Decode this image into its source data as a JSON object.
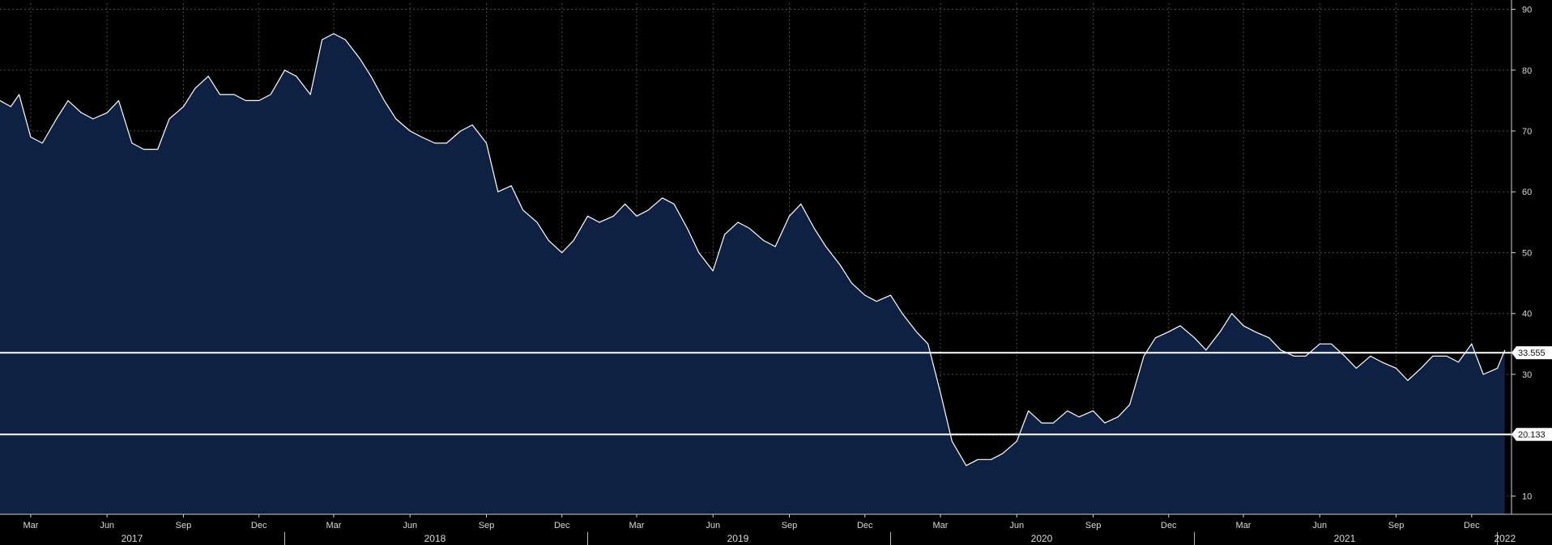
{
  "colors": {
    "background": "#000000",
    "area_fill": "#0e2142",
    "line": "#ffffff",
    "grid": "#4a4a4a",
    "level_line": "#ffffff",
    "level_label_bg": "#ffffff"
  },
  "chart_data": {
    "type": "area",
    "title": "",
    "xlabel": "",
    "ylabel": "",
    "grid": true,
    "y_axis_side": "right",
    "ylim": [
      7,
      91
    ],
    "y_ticks": [
      10,
      20,
      30,
      40,
      50,
      60,
      70,
      80,
      90
    ],
    "xlim": [
      "2017-01-23",
      "2022-01-18"
    ],
    "month_ticks": [
      {
        "label": "Mar",
        "date": "2017-03-01"
      },
      {
        "label": "Jun",
        "date": "2017-06-01"
      },
      {
        "label": "Sep",
        "date": "2017-09-01"
      },
      {
        "label": "Dec",
        "date": "2017-12-01"
      },
      {
        "label": "Mar",
        "date": "2018-03-01"
      },
      {
        "label": "Jun",
        "date": "2018-06-01"
      },
      {
        "label": "Sep",
        "date": "2018-09-01"
      },
      {
        "label": "Dec",
        "date": "2018-12-01"
      },
      {
        "label": "Mar",
        "date": "2019-03-01"
      },
      {
        "label": "Jun",
        "date": "2019-06-01"
      },
      {
        "label": "Sep",
        "date": "2019-09-01"
      },
      {
        "label": "Dec",
        "date": "2019-12-01"
      },
      {
        "label": "Mar",
        "date": "2020-03-01"
      },
      {
        "label": "Jun",
        "date": "2020-06-01"
      },
      {
        "label": "Sep",
        "date": "2020-09-01"
      },
      {
        "label": "Dec",
        "date": "2020-12-01"
      },
      {
        "label": "Mar",
        "date": "2021-03-01"
      },
      {
        "label": "Jun",
        "date": "2021-06-01"
      },
      {
        "label": "Sep",
        "date": "2021-09-01"
      },
      {
        "label": "Dec",
        "date": "2021-12-01"
      }
    ],
    "year_labels": [
      {
        "label": "2017",
        "date": "2017-07-01",
        "start": "2017-01-23"
      },
      {
        "label": "2018",
        "date": "2018-07-01",
        "start": "2018-01-01"
      },
      {
        "label": "2019",
        "date": "2019-07-01",
        "start": "2019-01-01"
      },
      {
        "label": "2020",
        "date": "2020-07-01",
        "start": "2020-01-01"
      },
      {
        "label": "2021",
        "date": "2021-07-01",
        "start": "2021-01-01"
      },
      {
        "label": "2022",
        "date": "2022-01-10",
        "start": "2022-01-01"
      }
    ],
    "levels": [
      {
        "value": 33.555,
        "label": "33.555"
      },
      {
        "value": 20.133,
        "label": "20.133"
      }
    ],
    "series": [
      {
        "x": [
          "2017-01-23",
          "2017-02-05",
          "2017-02-15",
          "2017-03-01",
          "2017-03-15",
          "2017-04-01",
          "2017-04-15",
          "2017-05-01",
          "2017-05-15",
          "2017-06-01",
          "2017-06-15",
          "2017-07-01",
          "2017-07-15",
          "2017-08-01",
          "2017-08-15",
          "2017-09-01",
          "2017-09-15",
          "2017-10-01",
          "2017-10-15",
          "2017-11-01",
          "2017-11-15",
          "2017-12-01",
          "2017-12-15",
          "2018-01-01",
          "2018-01-15",
          "2018-02-01",
          "2018-02-15",
          "2018-03-01",
          "2018-03-15",
          "2018-04-01",
          "2018-04-15",
          "2018-05-01",
          "2018-05-15",
          "2018-06-01",
          "2018-06-15",
          "2018-07-01",
          "2018-07-15",
          "2018-08-01",
          "2018-08-15",
          "2018-09-01",
          "2018-09-15",
          "2018-10-01",
          "2018-10-15",
          "2018-11-01",
          "2018-11-15",
          "2018-12-01",
          "2018-12-15",
          "2019-01-01",
          "2019-01-15",
          "2019-02-01",
          "2019-02-15",
          "2019-03-01",
          "2019-03-15",
          "2019-04-01",
          "2019-04-15",
          "2019-05-01",
          "2019-05-15",
          "2019-06-01",
          "2019-06-15",
          "2019-07-01",
          "2019-07-15",
          "2019-08-01",
          "2019-08-15",
          "2019-09-01",
          "2019-09-15",
          "2019-10-01",
          "2019-10-15",
          "2019-11-01",
          "2019-11-15",
          "2019-12-01",
          "2019-12-15",
          "2020-01-01",
          "2020-01-15",
          "2020-02-01",
          "2020-02-15",
          "2020-03-01",
          "2020-03-15",
          "2020-04-01",
          "2020-04-15",
          "2020-05-01",
          "2020-05-15",
          "2020-06-01",
          "2020-06-15",
          "2020-07-01",
          "2020-07-15",
          "2020-08-01",
          "2020-08-15",
          "2020-09-01",
          "2020-09-15",
          "2020-10-01",
          "2020-10-15",
          "2020-11-01",
          "2020-11-15",
          "2020-12-01",
          "2020-12-15",
          "2021-01-01",
          "2021-01-15",
          "2021-02-01",
          "2021-02-15",
          "2021-03-01",
          "2021-03-15",
          "2021-04-01",
          "2021-04-15",
          "2021-05-01",
          "2021-05-15",
          "2021-06-01",
          "2021-06-15",
          "2021-07-01",
          "2021-07-15",
          "2021-08-01",
          "2021-08-15",
          "2021-09-01",
          "2021-09-15",
          "2021-10-01",
          "2021-10-15",
          "2021-11-01",
          "2021-11-15",
          "2021-12-01",
          "2021-12-15",
          "2022-01-01",
          "2022-01-10"
        ],
        "values": [
          75,
          74,
          76,
          69,
          68,
          72,
          75,
          73,
          72,
          73,
          75,
          68,
          67,
          67,
          72,
          74,
          77,
          79,
          76,
          76,
          75,
          75,
          76,
          80,
          79,
          76,
          85,
          86,
          85,
          82,
          79,
          75,
          72,
          70,
          69,
          68,
          68,
          70,
          71,
          68,
          60,
          61,
          57,
          55,
          52,
          50,
          52,
          56,
          55,
          56,
          58,
          56,
          57,
          59,
          58,
          54,
          50,
          47,
          53,
          55,
          54,
          52,
          51,
          56,
          58,
          54,
          51,
          48,
          45,
          43,
          42,
          43,
          40,
          37,
          35,
          27,
          19,
          15,
          16,
          16,
          17,
          19,
          24,
          22,
          22,
          24,
          23,
          24,
          22,
          23,
          25,
          33,
          36,
          37,
          38,
          36,
          34,
          37,
          40,
          38,
          37,
          36,
          34,
          33,
          33,
          35,
          35,
          33,
          31,
          33,
          32,
          31,
          29,
          31,
          33,
          33,
          32,
          35,
          30,
          31,
          34
        ]
      }
    ]
  }
}
